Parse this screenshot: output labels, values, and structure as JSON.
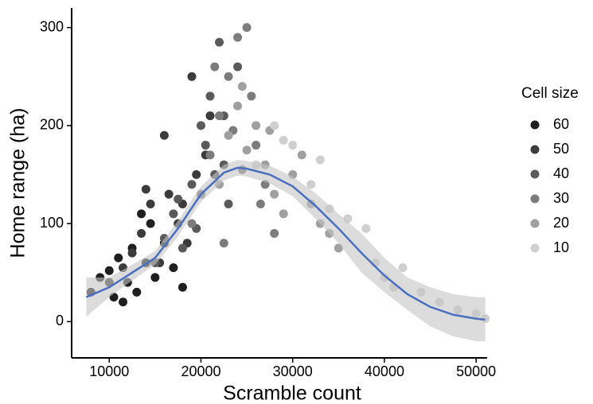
{
  "chart_data": {
    "type": "scatter",
    "x_label": "Scramble count",
    "y_label": "Home range (ha)",
    "legend_title": "Cell size",
    "legend_position": "right",
    "xlim": [
      5900,
      51200
    ],
    "ylim": [
      -37,
      320
    ],
    "xticks": [
      10000,
      20000,
      30000,
      40000,
      50000
    ],
    "yticks": [
      0,
      100,
      200,
      300
    ],
    "series": [
      {
        "name": "60",
        "color": "#1f1f1f",
        "x": [
          8000,
          9000,
          10000,
          10500,
          11000,
          12000,
          12500,
          13000,
          14000,
          14500,
          15000,
          16000,
          17000,
          18000,
          11500,
          13500
        ],
        "values": [
          30,
          45,
          52,
          25,
          65,
          40,
          75,
          30,
          60,
          100,
          45,
          80,
          55,
          35,
          20,
          110
        ]
      },
      {
        "name": "50",
        "color": "#3b3b3b",
        "x": [
          10000,
          11500,
          12500,
          13500,
          14500,
          15500,
          16500,
          17500,
          18500,
          19500,
          20500,
          21000,
          16000,
          14000,
          19000,
          18000
        ],
        "values": [
          40,
          55,
          70,
          90,
          120,
          60,
          130,
          100,
          80,
          150,
          170,
          210,
          190,
          135,
          250,
          120
        ]
      },
      {
        "name": "40",
        "color": "#5a5a5a",
        "x": [
          15000,
          16000,
          17000,
          18000,
          19000,
          20000,
          21000,
          22000,
          22500,
          23000,
          24000,
          19500,
          20500,
          21500,
          17500,
          22500
        ],
        "values": [
          60,
          85,
          110,
          75,
          140,
          200,
          230,
          285,
          160,
          120,
          260,
          95,
          180,
          150,
          125,
          210
        ]
      },
      {
        "name": "30",
        "color": "#7c7c7c",
        "x": [
          19000,
          20000,
          21000,
          22000,
          23000,
          24000,
          25000,
          26000,
          27000,
          28000,
          25500,
          24500,
          23500,
          26500,
          22500,
          21500
        ],
        "values": [
          100,
          130,
          170,
          210,
          250,
          290,
          300,
          180,
          140,
          90,
          230,
          155,
          195,
          120,
          80,
          260
        ]
      },
      {
        "name": "20",
        "color": "#a0a0a0",
        "x": [
          22000,
          23000,
          24000,
          25000,
          26000,
          27000,
          28000,
          29000,
          30000,
          31000,
          32000,
          33000,
          34000,
          35000,
          27500,
          24500
        ],
        "values": [
          140,
          190,
          220,
          175,
          200,
          160,
          130,
          110,
          150,
          170,
          120,
          100,
          90,
          75,
          195,
          240
        ]
      },
      {
        "name": "10",
        "color": "#cfcfcf",
        "x": [
          26000,
          28000,
          30000,
          32000,
          34000,
          36000,
          38000,
          39000,
          40000,
          41000,
          42000,
          44000,
          46000,
          48000,
          50000,
          51000,
          29000,
          33000
        ],
        "values": [
          160,
          200,
          180,
          140,
          115,
          105,
          95,
          60,
          45,
          35,
          55,
          30,
          20,
          12,
          8,
          3,
          185,
          165
        ]
      }
    ],
    "smooth": {
      "color": "#4a6fbf",
      "band_color": "#c4c4c4",
      "x": [
        7500,
        10000,
        12500,
        15000,
        17500,
        20000,
        22500,
        24000,
        25000,
        27500,
        30000,
        32500,
        35000,
        37500,
        40000,
        42500,
        45000,
        47500,
        50000,
        51000
      ],
      "y": [
        25,
        35,
        50,
        65,
        95,
        130,
        152,
        157,
        156,
        150,
        138,
        118,
        95,
        70,
        47,
        28,
        15,
        7,
        3,
        2
      ],
      "lower": [
        5,
        25,
        42,
        58,
        87,
        122,
        144,
        149,
        148,
        141,
        128,
        105,
        80,
        50,
        30,
        12,
        -5,
        -15,
        -20,
        -20
      ],
      "upper": [
        45,
        45,
        58,
        72,
        103,
        138,
        160,
        165,
        164,
        159,
        148,
        131,
        110,
        90,
        65,
        45,
        35,
        28,
        25,
        25
      ]
    }
  }
}
